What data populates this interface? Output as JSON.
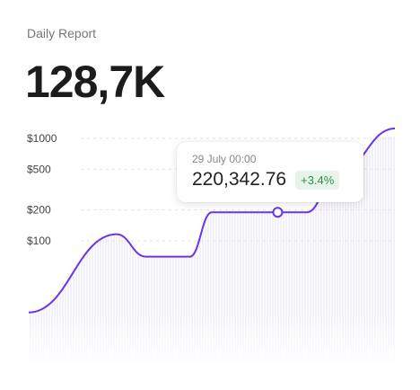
{
  "card": {
    "title": "Daily Report",
    "value": "128,7K"
  },
  "tooltip": {
    "date": "29 July 00:00",
    "value": "220,342.76",
    "change": "+3.4%"
  },
  "colors": {
    "line": "#6b35e8",
    "badge_bg": "#e6f4e9",
    "badge_text": "#2f8f45",
    "gridline": "#e3e3e3",
    "bars": "#e6e1f2"
  },
  "chart_data": {
    "type": "line",
    "title": "",
    "xlabel": "",
    "ylabel": "",
    "y_scale": "log",
    "y_ticks": [
      {
        "label": "$1000",
        "value": 1000
      },
      {
        "label": "$500",
        "value": 500
      },
      {
        "label": "$200",
        "value": 200
      },
      {
        "label": "$100",
        "value": 100
      }
    ],
    "grid": true,
    "series": [
      {
        "values": [
          20,
          116,
          70,
          70,
          190,
          190,
          190,
          440,
          1250
        ],
        "x": [
          0,
          24,
          32,
          44,
          50,
          58,
          76,
          84,
          100
        ]
      }
    ],
    "highlight": {
      "x": 68,
      "label": "29 July 00:00",
      "value": "220,342.76",
      "change": "+3.4%"
    }
  }
}
